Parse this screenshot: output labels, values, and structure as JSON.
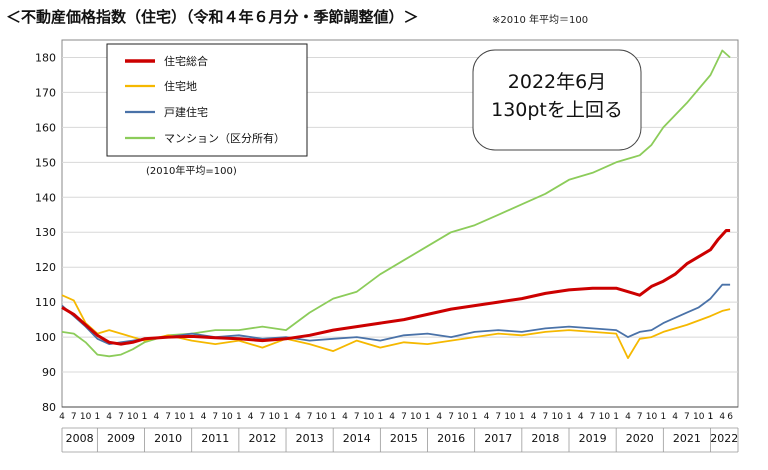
{
  "title": "＜不動産価格指数（住宅）（令和４年６月分・季節調整値）＞",
  "note": "※2010 年平均＝100",
  "chart_data": {
    "type": "line",
    "title": "＜不動産価格指数（住宅）（令和４年６月分・季節調整値）＞",
    "xlabel": "",
    "ylabel": "",
    "ylim": [
      80,
      185
    ],
    "yticks": [
      80,
      90,
      100,
      110,
      120,
      130,
      140,
      150,
      160,
      170,
      180
    ],
    "grid": true,
    "legend_position": "top-left",
    "base_note": "(2010年平均=100)",
    "annotation": {
      "line1": "2022年6月",
      "line2": "130ptを上回る"
    },
    "years": [
      "2008",
      "2009",
      "2010",
      "2011",
      "2012",
      "2013",
      "2014",
      "2015",
      "2016",
      "2017",
      "2018",
      "2019",
      "2020",
      "2021",
      "2022"
    ],
    "month_ticks": [
      "4",
      "7",
      "10",
      "1"
    ],
    "month_ticks_2022": [
      "1",
      "4",
      "6"
    ],
    "series_colors": [
      "#cc0000",
      "#f5b800",
      "#4a72a8",
      "#8ccc5a"
    ],
    "series": [
      {
        "name": "住宅総合",
        "color": "#cc0000",
        "points": [
          [
            "2008-04",
            108.5
          ],
          [
            "2008-07",
            106.5
          ],
          [
            "2008-10",
            103.5
          ],
          [
            "2009-01",
            100.5
          ],
          [
            "2009-04",
            98.5
          ],
          [
            "2009-07",
            98.0
          ],
          [
            "2009-10",
            98.5
          ],
          [
            "2010-01",
            99.5
          ],
          [
            "2010-07",
            100.0
          ],
          [
            "2011-01",
            100.2
          ],
          [
            "2011-07",
            99.8
          ],
          [
            "2012-01",
            99.5
          ],
          [
            "2012-07",
            99.0
          ],
          [
            "2013-01",
            99.5
          ],
          [
            "2013-07",
            100.5
          ],
          [
            "2014-01",
            102.0
          ],
          [
            "2014-07",
            103.0
          ],
          [
            "2015-01",
            104.0
          ],
          [
            "2015-07",
            105.0
          ],
          [
            "2016-01",
            106.5
          ],
          [
            "2016-07",
            108.0
          ],
          [
            "2017-01",
            109.0
          ],
          [
            "2017-07",
            110.0
          ],
          [
            "2018-01",
            111.0
          ],
          [
            "2018-07",
            112.5
          ],
          [
            "2019-01",
            113.5
          ],
          [
            "2019-07",
            114.0
          ],
          [
            "2020-01",
            114.0
          ],
          [
            "2020-04",
            113.0
          ],
          [
            "2020-07",
            112.0
          ],
          [
            "2020-10",
            114.5
          ],
          [
            "2021-01",
            116.0
          ],
          [
            "2021-04",
            118.0
          ],
          [
            "2021-07",
            121.0
          ],
          [
            "2021-10",
            123.0
          ],
          [
            "2022-01",
            125.0
          ],
          [
            "2022-03",
            128.0
          ],
          [
            "2022-05",
            130.5
          ],
          [
            "2022-06",
            130.5
          ]
        ]
      },
      {
        "name": "住宅地",
        "color": "#f5b800",
        "points": [
          [
            "2008-04",
            112.0
          ],
          [
            "2008-07",
            110.5
          ],
          [
            "2008-10",
            104.0
          ],
          [
            "2009-01",
            101.0
          ],
          [
            "2009-04",
            102.0
          ],
          [
            "2009-07",
            101.0
          ],
          [
            "2009-10",
            100.0
          ],
          [
            "2010-01",
            99.0
          ],
          [
            "2010-07",
            100.5
          ],
          [
            "2011-01",
            99.0
          ],
          [
            "2011-07",
            98.0
          ],
          [
            "2012-01",
            99.0
          ],
          [
            "2012-07",
            97.0
          ],
          [
            "2013-01",
            99.5
          ],
          [
            "2013-07",
            98.0
          ],
          [
            "2014-01",
            96.0
          ],
          [
            "2014-07",
            99.0
          ],
          [
            "2015-01",
            97.0
          ],
          [
            "2015-07",
            98.5
          ],
          [
            "2016-01",
            98.0
          ],
          [
            "2016-07",
            99.0
          ],
          [
            "2017-01",
            100.0
          ],
          [
            "2017-07",
            101.0
          ],
          [
            "2018-01",
            100.5
          ],
          [
            "2018-07",
            101.5
          ],
          [
            "2019-01",
            102.0
          ],
          [
            "2019-07",
            101.5
          ],
          [
            "2020-01",
            101.0
          ],
          [
            "2020-04",
            94.0
          ],
          [
            "2020-07",
            99.5
          ],
          [
            "2020-10",
            100.0
          ],
          [
            "2021-01",
            101.5
          ],
          [
            "2021-07",
            103.5
          ],
          [
            "2022-01",
            106.0
          ],
          [
            "2022-04",
            107.5
          ],
          [
            "2022-06",
            108.0
          ]
        ]
      },
      {
        "name": "戸建住宅",
        "color": "#4a72a8",
        "points": [
          [
            "2008-04",
            109.0
          ],
          [
            "2008-07",
            106.0
          ],
          [
            "2008-10",
            103.0
          ],
          [
            "2009-01",
            99.5
          ],
          [
            "2009-04",
            98.0
          ],
          [
            "2009-07",
            98.5
          ],
          [
            "2009-10",
            99.0
          ],
          [
            "2010-01",
            99.5
          ],
          [
            "2010-07",
            100.0
          ],
          [
            "2011-01",
            101.0
          ],
          [
            "2011-07",
            100.0
          ],
          [
            "2012-01",
            100.5
          ],
          [
            "2012-07",
            99.5
          ],
          [
            "2013-01",
            100.0
          ],
          [
            "2013-07",
            99.0
          ],
          [
            "2014-01",
            99.5
          ],
          [
            "2014-07",
            100.0
          ],
          [
            "2015-01",
            99.0
          ],
          [
            "2015-07",
            100.5
          ],
          [
            "2016-01",
            101.0
          ],
          [
            "2016-07",
            100.0
          ],
          [
            "2017-01",
            101.5
          ],
          [
            "2017-07",
            102.0
          ],
          [
            "2018-01",
            101.5
          ],
          [
            "2018-07",
            102.5
          ],
          [
            "2019-01",
            103.0
          ],
          [
            "2019-07",
            102.5
          ],
          [
            "2020-01",
            102.0
          ],
          [
            "2020-04",
            100.0
          ],
          [
            "2020-07",
            101.5
          ],
          [
            "2020-10",
            102.0
          ],
          [
            "2021-01",
            104.0
          ],
          [
            "2021-07",
            107.0
          ],
          [
            "2021-10",
            108.5
          ],
          [
            "2022-01",
            111.0
          ],
          [
            "2022-04",
            115.0
          ],
          [
            "2022-06",
            115.0
          ]
        ]
      },
      {
        "name": "マンション（区分所有）",
        "color": "#8ccc5a",
        "points": [
          [
            "2008-04",
            101.5
          ],
          [
            "2008-07",
            101.0
          ],
          [
            "2008-10",
            98.5
          ],
          [
            "2009-01",
            95.0
          ],
          [
            "2009-04",
            94.5
          ],
          [
            "2009-07",
            95.0
          ],
          [
            "2009-10",
            96.5
          ],
          [
            "2010-01",
            98.5
          ],
          [
            "2010-07",
            100.5
          ],
          [
            "2011-01",
            101.0
          ],
          [
            "2011-07",
            102.0
          ],
          [
            "2012-01",
            102.0
          ],
          [
            "2012-07",
            103.0
          ],
          [
            "2013-01",
            102.0
          ],
          [
            "2013-07",
            107.0
          ],
          [
            "2014-01",
            111.0
          ],
          [
            "2014-07",
            113.0
          ],
          [
            "2015-01",
            118.0
          ],
          [
            "2015-07",
            122.0
          ],
          [
            "2016-01",
            126.0
          ],
          [
            "2016-07",
            130.0
          ],
          [
            "2017-01",
            132.0
          ],
          [
            "2017-07",
            135.0
          ],
          [
            "2018-01",
            138.0
          ],
          [
            "2018-07",
            141.0
          ],
          [
            "2019-01",
            145.0
          ],
          [
            "2019-07",
            147.0
          ],
          [
            "2020-01",
            150.0
          ],
          [
            "2020-04",
            151.0
          ],
          [
            "2020-07",
            152.0
          ],
          [
            "2020-10",
            155.0
          ],
          [
            "2021-01",
            160.0
          ],
          [
            "2021-07",
            167.0
          ],
          [
            "2022-01",
            175.0
          ],
          [
            "2022-04",
            182.0
          ],
          [
            "2022-06",
            180.0
          ]
        ]
      }
    ]
  }
}
